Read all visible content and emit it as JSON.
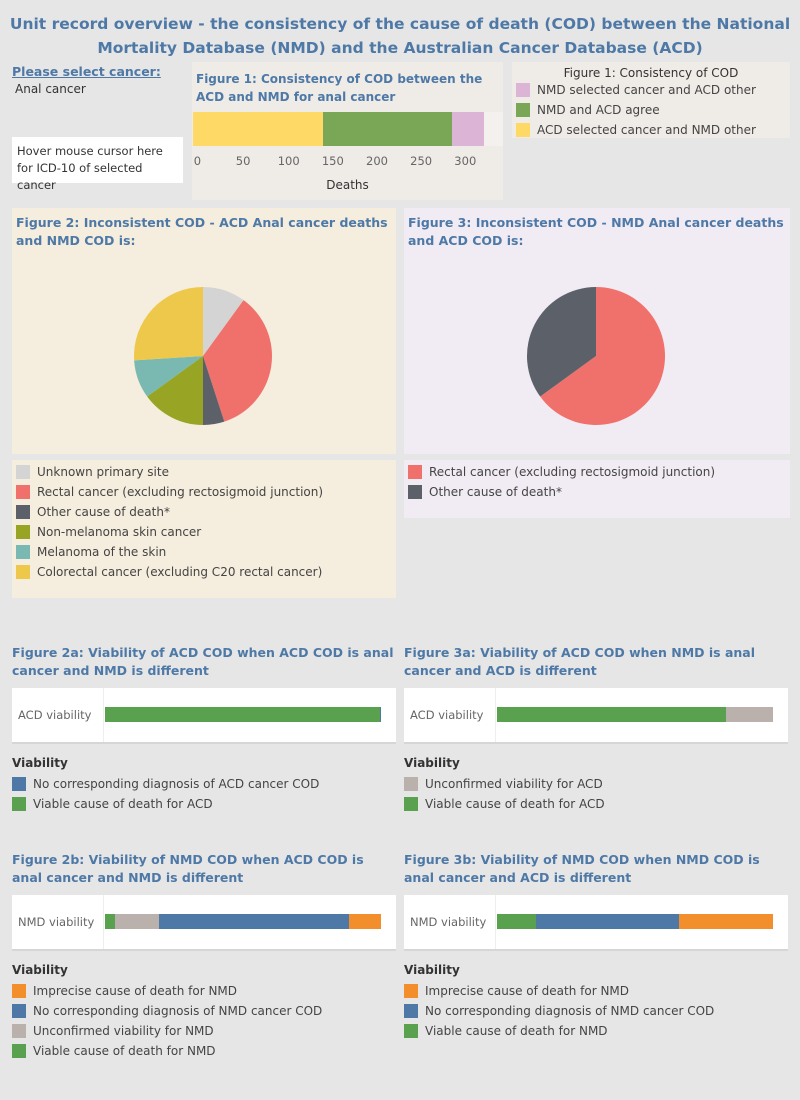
{
  "title": "Unit record overview - the consistency of the cause of death (COD) between the National Mortality Database (NMD) and the Australian Cancer Database (ACD)",
  "selector": {
    "label": "Please select cancer:",
    "value": "Anal cancer"
  },
  "hover_box": "Hover mouse cursor here for ICD-10 of selected cancer",
  "colors": {
    "title": "#4e79a7",
    "nmd_selected": "#dcb4d6",
    "agree": "#7aa755",
    "acd_selected": "#ffd966",
    "unknown": "#d4d4d4",
    "rectal": "#f0716b",
    "other": "#5c6068",
    "nonmel": "#97a424",
    "melanoma": "#79b9b1",
    "colorectal": "#eec84a",
    "blue": "#4e79a7",
    "green": "#59a14f",
    "grey": "#bab0ac",
    "orange": "#f28e2b"
  },
  "chart_data": [
    {
      "type": "bar",
      "stacked": true,
      "orientation": "horizontal",
      "title": "Figure 1: Consistency of COD between the ACD and NMD for anal cancer",
      "xlabel": "Deaths",
      "xlim": [
        0,
        340
      ],
      "xticks": [
        0,
        50,
        100,
        150,
        200,
        250,
        300
      ],
      "legend_title": "Figure 1: Consistency of COD",
      "series": [
        {
          "name": "ACD selected cancer and NMD other",
          "value": 147,
          "color": "#ffd966"
        },
        {
          "name": "NMD and ACD agree",
          "value": 146,
          "color": "#7aa755"
        },
        {
          "name": "NMD selected cancer and ACD other",
          "value": 37,
          "color": "#dcb4d6"
        }
      ],
      "legend_order": [
        2,
        1,
        0
      ]
    },
    {
      "type": "pie",
      "title": "Figure 2: Inconsistent COD - ACD Anal cancer deaths and NMD COD is:",
      "slices": [
        {
          "name": "Unknown primary site",
          "value": 10,
          "color": "#d4d4d4"
        },
        {
          "name": "Rectal cancer (excluding rectosigmoid junction)",
          "value": 35,
          "color": "#f0716b"
        },
        {
          "name": "Other cause of death*",
          "value": 5,
          "color": "#5c6068"
        },
        {
          "name": "Non-melanoma skin cancer",
          "value": 15,
          "color": "#97a424"
        },
        {
          "name": "Melanoma of the skin",
          "value": 9,
          "color": "#79b9b1"
        },
        {
          "name": "Colorectal cancer (excluding C20 rectal cancer)",
          "value": 26,
          "color": "#eec84a"
        }
      ]
    },
    {
      "type": "pie",
      "title": "Figure 3: Inconsistent COD - NMD Anal cancer deaths and ACD COD is:",
      "slices": [
        {
          "name": "Rectal cancer (excluding rectosigmoid junction)",
          "value": 65,
          "color": "#f0716b"
        },
        {
          "name": "Other cause of death*",
          "value": 35,
          "color": "#5c6068"
        }
      ]
    },
    {
      "type": "bar",
      "stacked": true,
      "percent": true,
      "title": "Figure 2a: Viability of ACD COD when ACD COD is anal cancer and NMD is different",
      "category": "ACD viability",
      "legend_title": "Viability",
      "series": [
        {
          "name": "Viable cause of death for ACD",
          "value": 99.6,
          "color": "#59a14f"
        },
        {
          "name": "No corresponding diagnosis of ACD cancer COD",
          "value": 0.4,
          "color": "#4e79a7"
        }
      ],
      "legend_order": [
        1,
        0
      ]
    },
    {
      "type": "bar",
      "stacked": true,
      "percent": true,
      "title": "Figure 3a: Viability of ACD COD when NMD is anal cancer and ACD is different",
      "category": "ACD viability",
      "legend_title": "Viability",
      "series": [
        {
          "name": "Viable cause of death for ACD",
          "value": 83,
          "color": "#59a14f"
        },
        {
          "name": "Unconfirmed viability for ACD",
          "value": 17,
          "color": "#bab0ac"
        }
      ],
      "legend_order": [
        1,
        0
      ]
    },
    {
      "type": "bar",
      "stacked": true,
      "percent": true,
      "title": "Figure 2b: Viability of NMD COD when ACD COD is anal cancer and NMD is different",
      "category": "NMD viability",
      "legend_title": "Viability",
      "series": [
        {
          "name": "Viable cause of death for NMD",
          "value": 3.5,
          "color": "#59a14f"
        },
        {
          "name": "Unconfirmed viability for NMD",
          "value": 16,
          "color": "#bab0ac"
        },
        {
          "name": "No corresponding diagnosis of NMD cancer COD",
          "value": 69,
          "color": "#4e79a7"
        },
        {
          "name": "Imprecise cause of death for NMD",
          "value": 11.5,
          "color": "#f28e2b"
        }
      ],
      "legend_order": [
        3,
        2,
        1,
        0
      ]
    },
    {
      "type": "bar",
      "stacked": true,
      "percent": true,
      "title": "Figure 3b: Viability of NMD COD when NMD COD is anal cancer and ACD is different",
      "category": "NMD viability",
      "legend_title": "Viability",
      "series": [
        {
          "name": "Viable cause of death for NMD",
          "value": 14,
          "color": "#59a14f"
        },
        {
          "name": "No corresponding diagnosis of NMD cancer COD",
          "value": 52,
          "color": "#4e79a7"
        },
        {
          "name": "Imprecise cause of death for NMD",
          "value": 34,
          "color": "#f28e2b"
        }
      ],
      "legend_order": [
        2,
        1,
        0
      ]
    }
  ]
}
